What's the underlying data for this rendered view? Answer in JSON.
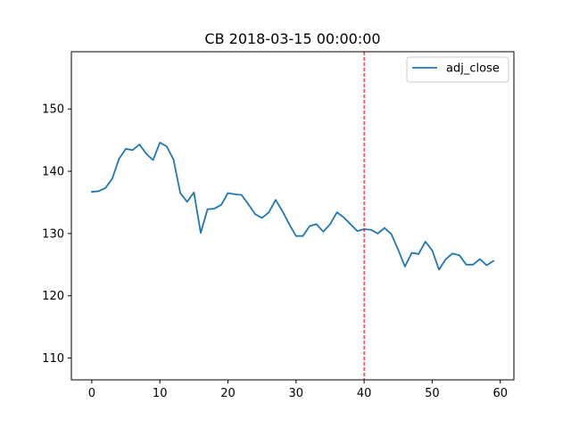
{
  "chart_data": {
    "type": "line",
    "title": "CB 2018-03-15 00:00:00",
    "xlabel": "",
    "ylabel": "",
    "xlim": [
      -3,
      62
    ],
    "ylim": [
      106.5,
      159.2
    ],
    "x_ticks": [
      0,
      10,
      20,
      30,
      40,
      50,
      60
    ],
    "y_ticks": [
      110,
      120,
      130,
      140,
      150
    ],
    "grid": false,
    "legend_position": "top-right",
    "series": [
      {
        "name": "adj_close",
        "color": "#1f77b4",
        "x": [
          0,
          1,
          2,
          3,
          4,
          5,
          6,
          7,
          8,
          9,
          10,
          11,
          12,
          13,
          14,
          15,
          16,
          17,
          18,
          19,
          20,
          21,
          22,
          23,
          24,
          25,
          26,
          27,
          28,
          29,
          30,
          31,
          32,
          33,
          34,
          35,
          36,
          37,
          38,
          39,
          40,
          41,
          42,
          43,
          44,
          45,
          46,
          47,
          48,
          49,
          50,
          51,
          52,
          53,
          54,
          55,
          56,
          57,
          58,
          59
        ],
        "values": [
          136.7,
          136.8,
          137.3,
          138.8,
          142.0,
          143.6,
          143.4,
          144.3,
          142.8,
          141.8,
          144.6,
          144.0,
          141.9,
          136.5,
          135.1,
          136.6,
          130.1,
          133.9,
          134.0,
          134.6,
          136.5,
          136.3,
          136.2,
          134.7,
          133.1,
          132.5,
          133.4,
          135.4,
          133.6,
          131.5,
          129.6,
          129.6,
          131.2,
          131.5,
          130.3,
          131.5,
          133.4,
          132.6,
          131.5,
          130.4,
          130.7,
          130.6,
          130.0,
          130.9,
          129.9,
          127.4,
          124.7,
          126.9,
          126.7,
          128.7,
          127.3,
          124.2,
          125.9,
          126.8,
          126.5,
          125.0,
          125.0,
          125.9,
          124.9,
          125.6
        ]
      }
    ],
    "annotations": [
      {
        "type": "vline",
        "x": 40,
        "color": "#ff0000",
        "style": "dashed"
      }
    ]
  }
}
